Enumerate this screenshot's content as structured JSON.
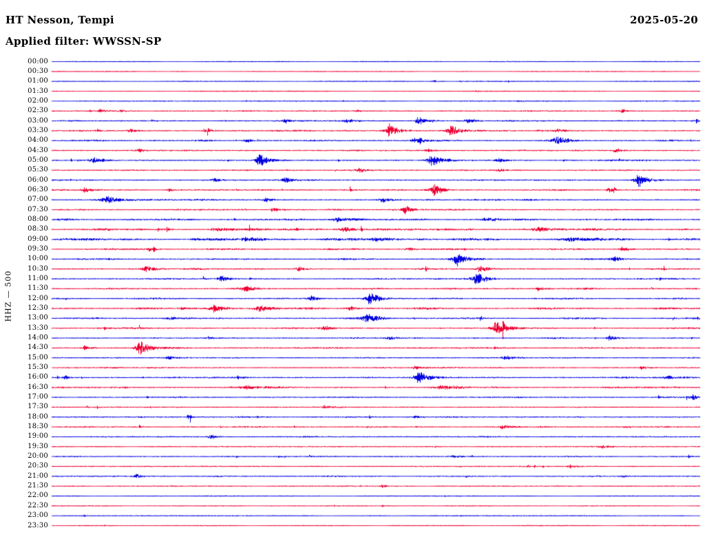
{
  "header": {
    "station": "HT Nesson, Tempi",
    "date": "2025-05-20",
    "filter_label": "Applied filter: WWSSN-SP"
  },
  "axis": {
    "channel_label": "HHZ — 500"
  },
  "colors": {
    "blue": "#0000e0",
    "red": "#ee0033",
    "text": "#000000",
    "background": "#ffffff"
  },
  "chart_data": {
    "type": "line",
    "subtype": "seismogram-helicorder",
    "title": "HT Nesson, Tempi",
    "date": "2025-05-20",
    "filter": "WWSSN-SP",
    "channel": "HHZ",
    "gain": 500,
    "row_interval_minutes": 30,
    "rows_per_day": 48,
    "rows": [
      {
        "time": "00:00",
        "color": "blue",
        "base_amp": 0.5,
        "events": []
      },
      {
        "time": "00:30",
        "color": "red",
        "base_amp": 0.5,
        "events": []
      },
      {
        "time": "01:00",
        "color": "blue",
        "base_amp": 0.6,
        "events": [
          {
            "p": 0.59,
            "a": 3,
            "w": 0.006
          },
          {
            "p": 0.63,
            "a": 2,
            "w": 0.004
          }
        ]
      },
      {
        "time": "01:30",
        "color": "red",
        "base_amp": 0.55,
        "events": [
          {
            "p": 0.655,
            "a": 2.5,
            "w": 0.004
          }
        ]
      },
      {
        "time": "02:00",
        "color": "blue",
        "base_amp": 0.8,
        "events": [
          {
            "p": 0.3,
            "a": 1.5,
            "w": 0.01
          },
          {
            "p": 0.72,
            "a": 1.5,
            "w": 0.008
          }
        ]
      },
      {
        "time": "02:30",
        "color": "red",
        "base_amp": 1.2,
        "events": [
          {
            "p": 0.075,
            "a": 3,
            "w": 0.008
          },
          {
            "p": 0.105,
            "a": 3,
            "w": 0.008
          },
          {
            "p": 0.47,
            "a": 2,
            "w": 0.01
          },
          {
            "p": 0.88,
            "a": 3.5,
            "w": 0.01
          }
        ]
      },
      {
        "time": "03:00",
        "color": "blue",
        "base_amp": 1.3,
        "events": [
          {
            "p": 0.36,
            "a": 4,
            "w": 0.008
          },
          {
            "p": 0.455,
            "a": 3,
            "w": 0.01
          },
          {
            "p": 0.565,
            "a": 8,
            "w": 0.01
          },
          {
            "p": 0.64,
            "a": 4,
            "w": 0.012
          }
        ]
      },
      {
        "time": "03:30",
        "color": "red",
        "base_amp": 1.5,
        "events": [
          {
            "p": 0.12,
            "a": 4,
            "w": 0.01
          },
          {
            "p": 0.235,
            "a": 3,
            "w": 0.008
          },
          {
            "p": 0.52,
            "a": 14,
            "w": 0.012
          },
          {
            "p": 0.615,
            "a": 12,
            "w": 0.012
          },
          {
            "p": 0.78,
            "a": 3,
            "w": 0.008
          }
        ]
      },
      {
        "time": "04:00",
        "color": "blue",
        "base_amp": 1.5,
        "events": [
          {
            "p": 0.3,
            "a": 3,
            "w": 0.01
          },
          {
            "p": 0.56,
            "a": 4,
            "w": 0.012
          },
          {
            "p": 0.78,
            "a": 6,
            "w": 0.018
          }
        ]
      },
      {
        "time": "04:30",
        "color": "red",
        "base_amp": 1.3,
        "events": [
          {
            "p": 0.135,
            "a": 3,
            "w": 0.008
          },
          {
            "p": 0.58,
            "a": 3,
            "w": 0.01
          },
          {
            "p": 0.87,
            "a": 4.5,
            "w": 0.01
          }
        ]
      },
      {
        "time": "05:00",
        "color": "blue",
        "base_amp": 1.5,
        "events": [
          {
            "p": 0.065,
            "a": 4,
            "w": 0.01
          },
          {
            "p": 0.32,
            "a": 12,
            "w": 0.01
          },
          {
            "p": 0.585,
            "a": 10,
            "w": 0.012
          },
          {
            "p": 0.69,
            "a": 4,
            "w": 0.01
          }
        ]
      },
      {
        "time": "05:30",
        "color": "red",
        "base_amp": 1.3,
        "events": [
          {
            "p": 0.475,
            "a": 4,
            "w": 0.01
          },
          {
            "p": 0.69,
            "a": 3,
            "w": 0.008
          }
        ]
      },
      {
        "time": "06:00",
        "color": "blue",
        "base_amp": 1.4,
        "events": [
          {
            "p": 0.25,
            "a": 3,
            "w": 0.008
          },
          {
            "p": 0.36,
            "a": 4,
            "w": 0.01
          },
          {
            "p": 0.905,
            "a": 12,
            "w": 0.012
          }
        ]
      },
      {
        "time": "06:30",
        "color": "red",
        "base_amp": 1.5,
        "events": [
          {
            "p": 0.05,
            "a": 5,
            "w": 0.008
          },
          {
            "p": 0.18,
            "a": 3,
            "w": 0.008
          },
          {
            "p": 0.59,
            "a": 11,
            "w": 0.012
          },
          {
            "p": 0.86,
            "a": 4,
            "w": 0.01
          }
        ]
      },
      {
        "time": "07:00",
        "color": "blue",
        "base_amp": 1.5,
        "events": [
          {
            "p": 0.085,
            "a": 6,
            "w": 0.02
          },
          {
            "p": 0.33,
            "a": 3,
            "w": 0.01
          },
          {
            "p": 0.51,
            "a": 5,
            "w": 0.012
          }
        ]
      },
      {
        "time": "07:30",
        "color": "red",
        "base_amp": 1.4,
        "events": [
          {
            "p": 0.34,
            "a": 4,
            "w": 0.01
          },
          {
            "p": 0.545,
            "a": 7,
            "w": 0.012
          }
        ]
      },
      {
        "time": "08:00",
        "color": "blue",
        "base_amp": 1.8,
        "events": [
          {
            "p": 0.44,
            "a": 4,
            "w": 0.02
          },
          {
            "p": 0.67,
            "a": 3,
            "w": 0.015
          }
        ]
      },
      {
        "time": "08:30",
        "color": "red",
        "base_amp": 2.0,
        "events": [
          {
            "p": 0.25,
            "a": 3,
            "w": 0.02
          },
          {
            "p": 0.45,
            "a": 4,
            "w": 0.02
          },
          {
            "p": 0.75,
            "a": 3,
            "w": 0.02
          }
        ]
      },
      {
        "time": "09:00",
        "color": "blue",
        "base_amp": 2.2,
        "events": [
          {
            "p": 0.3,
            "a": 4,
            "w": 0.02
          },
          {
            "p": 0.5,
            "a": 4,
            "w": 0.02
          },
          {
            "p": 0.8,
            "a": 3,
            "w": 0.02
          }
        ]
      },
      {
        "time": "09:30",
        "color": "red",
        "base_amp": 1.5,
        "events": [
          {
            "p": 0.15,
            "a": 3,
            "w": 0.01
          },
          {
            "p": 0.55,
            "a": 3,
            "w": 0.01
          },
          {
            "p": 0.88,
            "a": 4,
            "w": 0.01
          }
        ]
      },
      {
        "time": "10:00",
        "color": "blue",
        "base_amp": 1.5,
        "events": [
          {
            "p": 0.625,
            "a": 12,
            "w": 0.012
          },
          {
            "p": 0.87,
            "a": 4,
            "w": 0.01
          }
        ]
      },
      {
        "time": "10:30",
        "color": "red",
        "base_amp": 1.4,
        "events": [
          {
            "p": 0.145,
            "a": 6,
            "w": 0.012
          },
          {
            "p": 0.38,
            "a": 4,
            "w": 0.01
          },
          {
            "p": 0.66,
            "a": 5,
            "w": 0.012
          }
        ]
      },
      {
        "time": "11:00",
        "color": "blue",
        "base_amp": 1.4,
        "events": [
          {
            "p": 0.26,
            "a": 7,
            "w": 0.008
          },
          {
            "p": 0.655,
            "a": 12,
            "w": 0.012
          }
        ]
      },
      {
        "time": "11:30",
        "color": "red",
        "base_amp": 1.5,
        "events": [
          {
            "p": 0.3,
            "a": 5,
            "w": 0.012
          },
          {
            "p": 0.75,
            "a": 4,
            "w": 0.01
          }
        ]
      },
      {
        "time": "12:00",
        "color": "blue",
        "base_amp": 1.4,
        "events": [
          {
            "p": 0.4,
            "a": 5,
            "w": 0.01
          },
          {
            "p": 0.49,
            "a": 12,
            "w": 0.012
          }
        ]
      },
      {
        "time": "12:30",
        "color": "red",
        "base_amp": 1.8,
        "events": [
          {
            "p": 0.25,
            "a": 6,
            "w": 0.018
          },
          {
            "p": 0.32,
            "a": 5,
            "w": 0.014
          },
          {
            "p": 0.46,
            "a": 4,
            "w": 0.012
          }
        ]
      },
      {
        "time": "13:00",
        "color": "blue",
        "base_amp": 1.5,
        "events": [
          {
            "p": 0.18,
            "a": 4,
            "w": 0.01
          },
          {
            "p": 0.485,
            "a": 9,
            "w": 0.016
          }
        ]
      },
      {
        "time": "13:30",
        "color": "red",
        "base_amp": 1.5,
        "events": [
          {
            "p": 0.42,
            "a": 4,
            "w": 0.01
          },
          {
            "p": 0.685,
            "a": 13,
            "w": 0.012
          }
        ]
      },
      {
        "time": "14:00",
        "color": "blue",
        "base_amp": 1.3,
        "events": [
          {
            "p": 0.52,
            "a": 3,
            "w": 0.01
          },
          {
            "p": 0.86,
            "a": 4,
            "w": 0.01
          }
        ]
      },
      {
        "time": "14:30",
        "color": "red",
        "base_amp": 1.5,
        "events": [
          {
            "p": 0.05,
            "a": 4,
            "w": 0.008
          },
          {
            "p": 0.135,
            "a": 12,
            "w": 0.012
          }
        ]
      },
      {
        "time": "15:00",
        "color": "blue",
        "base_amp": 1.2,
        "events": [
          {
            "p": 0.18,
            "a": 3,
            "w": 0.008
          },
          {
            "p": 0.7,
            "a": 4,
            "w": 0.01
          }
        ]
      },
      {
        "time": "15:30",
        "color": "red",
        "base_amp": 1.3,
        "events": [
          {
            "p": 0.56,
            "a": 3,
            "w": 0.01
          },
          {
            "p": 0.91,
            "a": 3,
            "w": 0.008
          }
        ]
      },
      {
        "time": "16:00",
        "color": "blue",
        "base_amp": 1.5,
        "events": [
          {
            "p": 0.02,
            "a": 4,
            "w": 0.008
          },
          {
            "p": 0.565,
            "a": 12,
            "w": 0.012
          },
          {
            "p": 0.95,
            "a": 4,
            "w": 0.01
          }
        ]
      },
      {
        "time": "16:30",
        "color": "red",
        "base_amp": 1.6,
        "events": [
          {
            "p": 0.3,
            "a": 3,
            "w": 0.02
          },
          {
            "p": 0.6,
            "a": 3,
            "w": 0.02
          }
        ]
      },
      {
        "time": "17:00",
        "color": "blue",
        "base_amp": 1.3,
        "events": [
          {
            "p": 0.99,
            "a": 5,
            "w": 0.006
          }
        ]
      },
      {
        "time": "17:30",
        "color": "red",
        "base_amp": 1.0,
        "events": [
          {
            "p": 0.42,
            "a": 3,
            "w": 0.008
          }
        ]
      },
      {
        "time": "18:00",
        "color": "blue",
        "base_amp": 1.3,
        "events": [
          {
            "p": 0.21,
            "a": 4,
            "w": 0.01
          },
          {
            "p": 0.56,
            "a": 3,
            "w": 0.01
          }
        ]
      },
      {
        "time": "18:30",
        "color": "red",
        "base_amp": 1.3,
        "events": [
          {
            "p": 0.695,
            "a": 4,
            "w": 0.012
          },
          {
            "p": 0.885,
            "a": 3,
            "w": 0.01
          }
        ]
      },
      {
        "time": "19:00",
        "color": "blue",
        "base_amp": 1.2,
        "events": [
          {
            "p": 0.245,
            "a": 4,
            "w": 0.008
          }
        ]
      },
      {
        "time": "19:30",
        "color": "red",
        "base_amp": 1.0,
        "events": [
          {
            "p": 0.85,
            "a": 3,
            "w": 0.01
          }
        ]
      },
      {
        "time": "20:00",
        "color": "blue",
        "base_amp": 1.2,
        "events": [
          {
            "p": 0.35,
            "a": 2,
            "w": 0.01
          },
          {
            "p": 0.62,
            "a": 2,
            "w": 0.01
          }
        ]
      },
      {
        "time": "20:30",
        "color": "red",
        "base_amp": 1.0,
        "events": [
          {
            "p": 0.8,
            "a": 3,
            "w": 0.01
          }
        ]
      },
      {
        "time": "21:00",
        "color": "blue",
        "base_amp": 1.2,
        "events": [
          {
            "p": 0.13,
            "a": 4,
            "w": 0.01
          },
          {
            "p": 0.88,
            "a": 3,
            "w": 0.008
          }
        ]
      },
      {
        "time": "21:30",
        "color": "red",
        "base_amp": 1.0,
        "events": [
          {
            "p": 0.51,
            "a": 3,
            "w": 0.006
          }
        ]
      },
      {
        "time": "22:00",
        "color": "blue",
        "base_amp": 0.6,
        "events": []
      },
      {
        "time": "22:30",
        "color": "red",
        "base_amp": 0.6,
        "events": [
          {
            "p": 0.51,
            "a": 2,
            "w": 0.004
          }
        ]
      },
      {
        "time": "23:00",
        "color": "blue",
        "base_amp": 0.7,
        "events": [
          {
            "p": 0.05,
            "a": 2,
            "w": 0.005
          }
        ]
      },
      {
        "time": "23:30",
        "color": "red",
        "base_amp": 0.6,
        "events": []
      }
    ]
  }
}
